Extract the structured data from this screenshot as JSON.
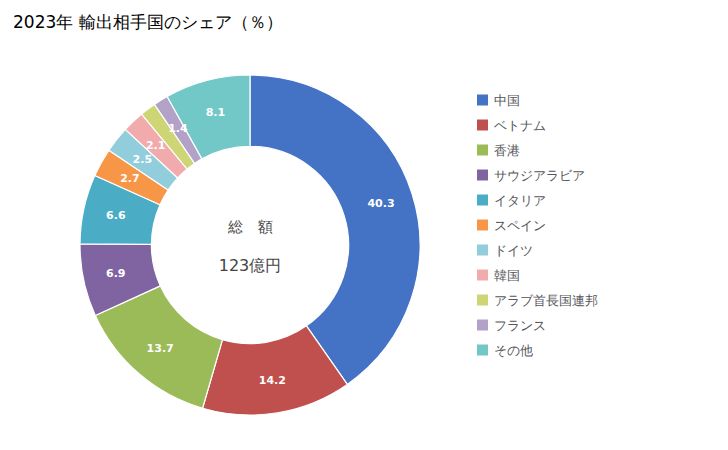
{
  "chart_data": {
    "type": "pie",
    "title": "2023年 輸出相手国のシェア（％）",
    "annotations": [
      "総　額",
      "123億円"
    ],
    "categories": [
      "中国",
      "ベトナム",
      "香港",
      "サウジアラビア",
      "イタリア",
      "スペイン",
      "ドイツ",
      "韓国",
      "アラブ首長国連邦",
      "フランス",
      "その他"
    ],
    "values": [
      40.3,
      14.2,
      13.7,
      6.9,
      6.6,
      2.7,
      2.5,
      2.1,
      1.5,
      1.4,
      8.1
    ],
    "colors": [
      "#4472C4",
      "#C0504D",
      "#9BBB59",
      "#8064A2",
      "#4BACC6",
      "#F79646",
      "#92CDDC",
      "#F2ABAC",
      "#CDD575",
      "#B3A2C7",
      "#72C7C7"
    ],
    "data_labels": true,
    "legend": "right"
  }
}
